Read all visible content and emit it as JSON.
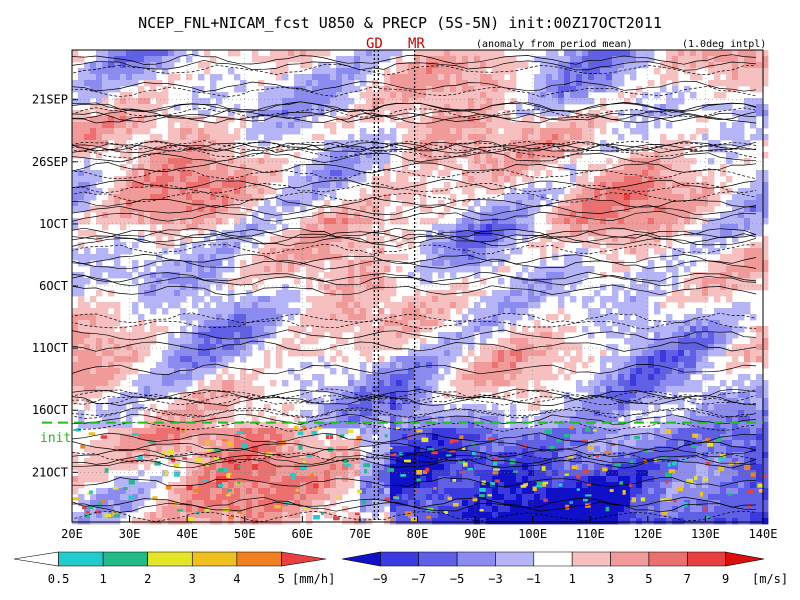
{
  "title": "NCEP_FNL+NICAM_fcst U850 & PRECP (5S-5N) init:00Z17OCT2011",
  "subtitle_left": "(anomaly from period mean)",
  "subtitle_right": "(1.0deg intpl)",
  "markers": {
    "gd": "GD",
    "mr": "MR",
    "init": "init"
  },
  "colors": {
    "positive": "#f09a9a",
    "negative": "#8c8cf0",
    "init_line": "#22bb22",
    "marker_text": "#cc0000"
  },
  "chart_data": {
    "type": "heatmap",
    "x_ticks": [
      "20E",
      "30E",
      "40E",
      "50E",
      "60E",
      "70E",
      "80E",
      "90E",
      "100E",
      "110E",
      "120E",
      "130E",
      "140E"
    ],
    "x_range": [
      20,
      140
    ],
    "y_ticks": [
      "21SEP",
      "26SEP",
      "1OCT",
      "6OCT",
      "11OCT",
      "16OCT",
      "21OCT"
    ],
    "y_tick_days": [
      4,
      9,
      14,
      19,
      24,
      29,
      34
    ],
    "y_range_days": [
      0,
      38
    ],
    "init_day": 30,
    "vertical_lines_lon": [
      72.5,
      73.2,
      79.5
    ],
    "u850_colorbar": {
      "labels": [
        "−9",
        "−7",
        "−5",
        "−3",
        "−1",
        "1",
        "3",
        "5",
        "7",
        "9"
      ],
      "colors": [
        "#1010c8",
        "#3a3ae0",
        "#6060e6",
        "#8c8cf0",
        "#b4b4f6",
        "#ffffff",
        "#f6c0c0",
        "#f09a9a",
        "#ec7070",
        "#e84040",
        "#dc0e0e"
      ],
      "unit": "[m/s]"
    },
    "precip_colorbar": {
      "labels": [
        "0.5",
        "1",
        "2",
        "3",
        "4",
        "5"
      ],
      "colors": [
        "#ffffff",
        "#22cccc",
        "#22bb88",
        "#e4e428",
        "#f0c020",
        "#f08020",
        "#e84040"
      ],
      "unit": "[mm/h]"
    }
  }
}
